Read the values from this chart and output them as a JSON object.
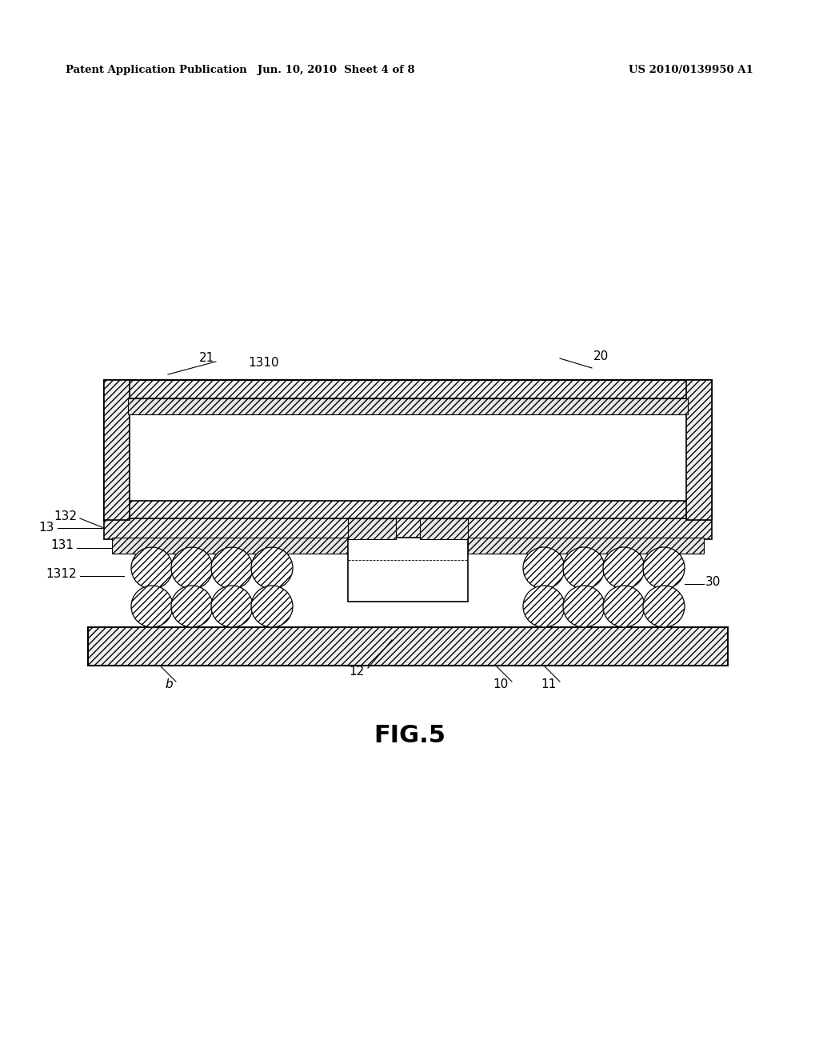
{
  "bg_color": "#ffffff",
  "header_left": "Patent Application Publication",
  "header_mid": "Jun. 10, 2010  Sheet 4 of 8",
  "header_right": "US 2010/0139950 A1",
  "fig_label": "FIG.5",
  "page_width": 10.24,
  "page_height": 13.2,
  "dpi": 100
}
